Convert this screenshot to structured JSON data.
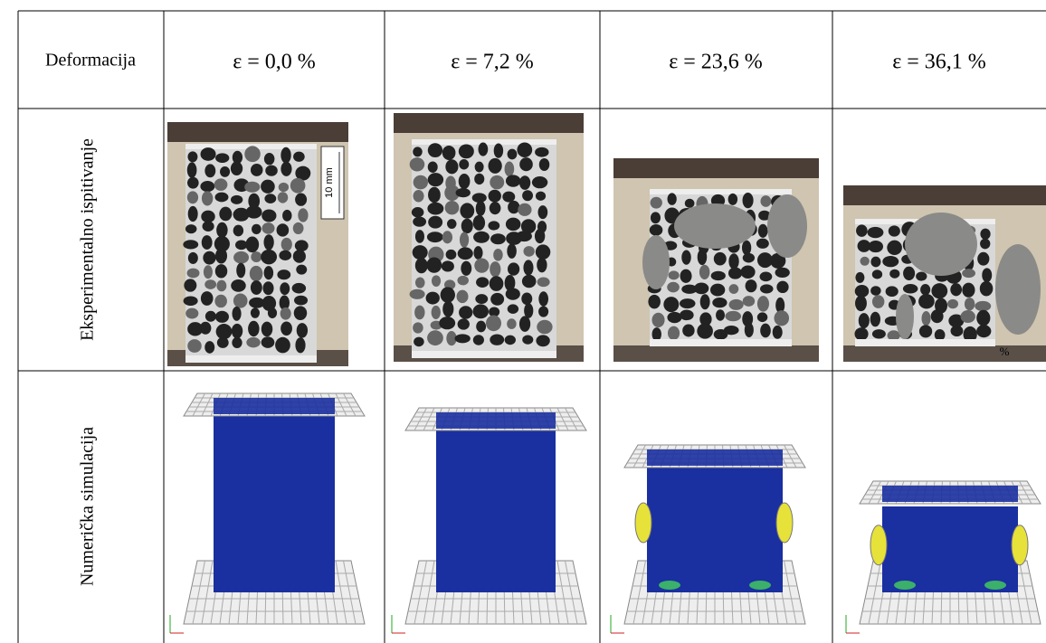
{
  "table": {
    "header": [
      "Deformacija",
      "ε = 0,0 %",
      "ε = 7,2 %",
      "ε = 23,6 %",
      "ε = 36,1 %"
    ],
    "rows": [
      {
        "label": "Eksperimentalno ispitivanje"
      },
      {
        "label": "Numerička simulacija"
      }
    ]
  },
  "figure_text": {
    "scale_bar": "10 mm",
    "corner_mark": "%"
  }
}
